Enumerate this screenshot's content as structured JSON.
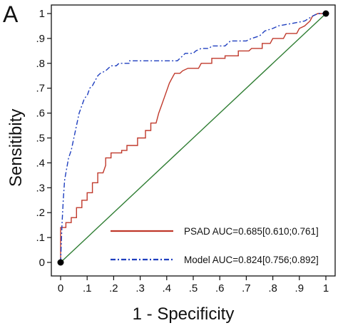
{
  "panel_label": "A",
  "chart_data": {
    "type": "line",
    "title": "",
    "xlabel": "1 - Specificity",
    "ylabel": "Sensitibity",
    "xlim": [
      0,
      1
    ],
    "ylim": [
      0,
      1
    ],
    "x_ticks": [
      0,
      0.1,
      0.2,
      0.3,
      0.4,
      0.5,
      0.6,
      0.7,
      0.8,
      0.9,
      1
    ],
    "x_tick_labels": [
      "0",
      ".1",
      ".2",
      ".3",
      ".4",
      ".5",
      ".6",
      ".7",
      ".8",
      ".9",
      "1"
    ],
    "y_ticks": [
      0,
      0.1,
      0.2,
      0.3,
      0.4,
      0.5,
      0.6,
      0.7,
      0.8,
      0.9,
      1
    ],
    "y_tick_labels": [
      "0",
      ".1",
      ".2",
      ".3",
      ".4",
      ".5",
      ".6",
      ".7",
      ".8",
      ".9",
      "1"
    ],
    "grid": false,
    "legend_position": "bottom-right",
    "series": [
      {
        "name": "PSAD AUC=0.685[0.610;0.761]",
        "color": "#c0392b",
        "style": "solid",
        "points": [
          [
            0,
            0
          ],
          [
            0,
            0.14
          ],
          [
            0.02,
            0.14
          ],
          [
            0.02,
            0.16
          ],
          [
            0.04,
            0.16
          ],
          [
            0.04,
            0.18
          ],
          [
            0.06,
            0.18
          ],
          [
            0.06,
            0.22
          ],
          [
            0.08,
            0.22
          ],
          [
            0.08,
            0.25
          ],
          [
            0.1,
            0.25
          ],
          [
            0.1,
            0.28
          ],
          [
            0.12,
            0.28
          ],
          [
            0.12,
            0.32
          ],
          [
            0.14,
            0.32
          ],
          [
            0.14,
            0.36
          ],
          [
            0.16,
            0.36
          ],
          [
            0.17,
            0.39
          ],
          [
            0.17,
            0.42
          ],
          [
            0.19,
            0.42
          ],
          [
            0.19,
            0.44
          ],
          [
            0.23,
            0.44
          ],
          [
            0.23,
            0.45
          ],
          [
            0.25,
            0.45
          ],
          [
            0.25,
            0.47
          ],
          [
            0.29,
            0.47
          ],
          [
            0.29,
            0.5
          ],
          [
            0.32,
            0.5
          ],
          [
            0.32,
            0.53
          ],
          [
            0.34,
            0.53
          ],
          [
            0.34,
            0.56
          ],
          [
            0.36,
            0.56
          ],
          [
            0.37,
            0.6
          ],
          [
            0.38,
            0.63
          ],
          [
            0.39,
            0.66
          ],
          [
            0.4,
            0.69
          ],
          [
            0.41,
            0.72
          ],
          [
            0.42,
            0.74
          ],
          [
            0.43,
            0.76
          ],
          [
            0.45,
            0.76
          ],
          [
            0.46,
            0.77
          ],
          [
            0.48,
            0.78
          ],
          [
            0.52,
            0.78
          ],
          [
            0.53,
            0.8
          ],
          [
            0.57,
            0.8
          ],
          [
            0.57,
            0.82
          ],
          [
            0.62,
            0.82
          ],
          [
            0.62,
            0.83
          ],
          [
            0.67,
            0.83
          ],
          [
            0.67,
            0.85
          ],
          [
            0.71,
            0.85
          ],
          [
            0.72,
            0.86
          ],
          [
            0.76,
            0.86
          ],
          [
            0.76,
            0.88
          ],
          [
            0.79,
            0.88
          ],
          [
            0.8,
            0.9
          ],
          [
            0.84,
            0.9
          ],
          [
            0.85,
            0.92
          ],
          [
            0.89,
            0.92
          ],
          [
            0.9,
            0.94
          ],
          [
            0.92,
            0.95
          ],
          [
            0.94,
            0.97
          ],
          [
            0.95,
            0.99
          ],
          [
            0.97,
            1
          ],
          [
            1,
            1
          ]
        ]
      },
      {
        "name": "Model AUC=0.824[0.756;0.892]",
        "color": "#1f3fbf",
        "style": "dash-dot",
        "points": [
          [
            0,
            0
          ],
          [
            0.005,
            0.15
          ],
          [
            0.01,
            0.25
          ],
          [
            0.015,
            0.33
          ],
          [
            0.02,
            0.36
          ],
          [
            0.03,
            0.42
          ],
          [
            0.04,
            0.45
          ],
          [
            0.05,
            0.5
          ],
          [
            0.06,
            0.55
          ],
          [
            0.07,
            0.6
          ],
          [
            0.08,
            0.63
          ],
          [
            0.09,
            0.66
          ],
          [
            0.1,
            0.67
          ],
          [
            0.11,
            0.7
          ],
          [
            0.12,
            0.71
          ],
          [
            0.13,
            0.73
          ],
          [
            0.14,
            0.75
          ],
          [
            0.15,
            0.76
          ],
          [
            0.17,
            0.77
          ],
          [
            0.19,
            0.79
          ],
          [
            0.21,
            0.79
          ],
          [
            0.22,
            0.8
          ],
          [
            0.26,
            0.8
          ],
          [
            0.26,
            0.81
          ],
          [
            0.35,
            0.81
          ],
          [
            0.44,
            0.81
          ],
          [
            0.45,
            0.82
          ],
          [
            0.46,
            0.83
          ],
          [
            0.47,
            0.84
          ],
          [
            0.5,
            0.84
          ],
          [
            0.51,
            0.85
          ],
          [
            0.53,
            0.86
          ],
          [
            0.56,
            0.86
          ],
          [
            0.57,
            0.87
          ],
          [
            0.62,
            0.87
          ],
          [
            0.64,
            0.89
          ],
          [
            0.7,
            0.89
          ],
          [
            0.72,
            0.9
          ],
          [
            0.75,
            0.91
          ],
          [
            0.77,
            0.93
          ],
          [
            0.8,
            0.94
          ],
          [
            0.82,
            0.95
          ],
          [
            0.87,
            0.96
          ],
          [
            0.92,
            0.97
          ],
          [
            0.95,
            0.99
          ],
          [
            0.97,
            1
          ],
          [
            1,
            1
          ]
        ]
      },
      {
        "name": "",
        "color": "#2e7d32",
        "style": "solid",
        "points": [
          [
            0,
            0
          ],
          [
            1,
            1
          ]
        ]
      }
    ],
    "endpoints": [
      [
        0,
        0
      ],
      [
        1,
        1
      ]
    ]
  }
}
